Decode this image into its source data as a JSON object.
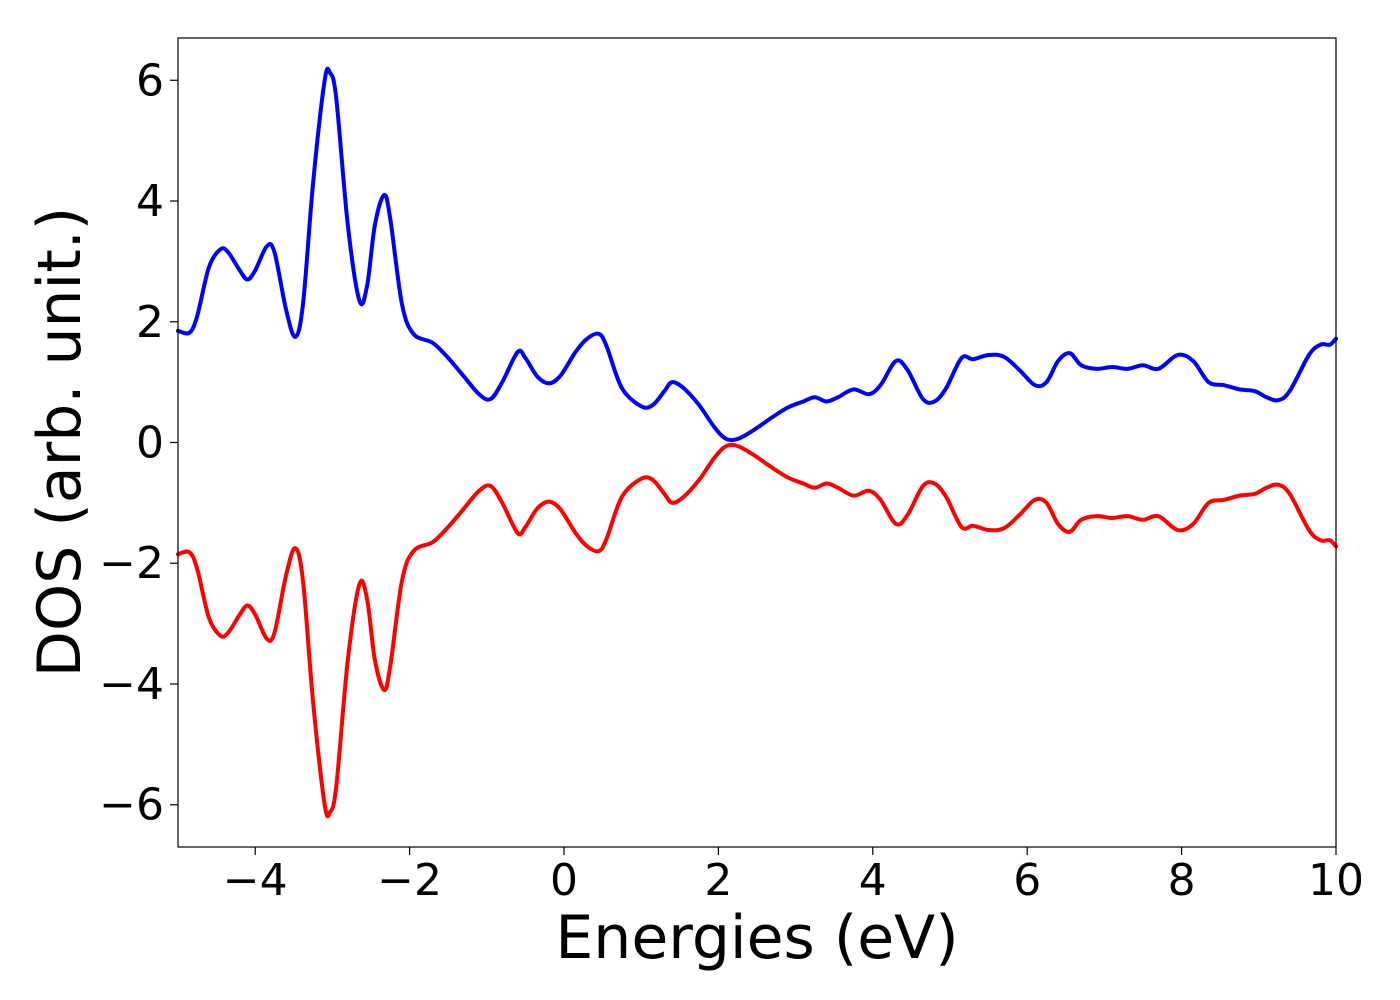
{
  "chart_data": {
    "type": "line",
    "xlabel": "Energies (eV)",
    "ylabel": "DOS (arb. unit.)",
    "xlim": [
      -5,
      10
    ],
    "ylim": [
      -6.7,
      6.7
    ],
    "grid": false,
    "xticks": [
      {
        "value": -4,
        "label": "−4"
      },
      {
        "value": -2,
        "label": "−2"
      },
      {
        "value": 0,
        "label": "0"
      },
      {
        "value": 2,
        "label": "2"
      },
      {
        "value": 4,
        "label": "4"
      },
      {
        "value": 6,
        "label": "6"
      },
      {
        "value": 8,
        "label": "8"
      },
      {
        "value": 10,
        "label": "10"
      }
    ],
    "yticks": [
      {
        "value": -6,
        "label": "−6"
      },
      {
        "value": -4,
        "label": "−4"
      },
      {
        "value": -2,
        "label": "−2"
      },
      {
        "value": 0,
        "label": "0"
      },
      {
        "value": 2,
        "label": "2"
      },
      {
        "value": 4,
        "label": "4"
      },
      {
        "value": 6,
        "label": "6"
      }
    ],
    "series": [
      {
        "color": "#0000ff",
        "points": [
          [
            -5.0,
            1.85
          ],
          [
            -4.85,
            1.82
          ],
          [
            -4.75,
            2.1
          ],
          [
            -4.6,
            2.9
          ],
          [
            -4.45,
            3.2
          ],
          [
            -4.35,
            3.15
          ],
          [
            -4.2,
            2.85
          ],
          [
            -4.1,
            2.7
          ],
          [
            -4.0,
            2.85
          ],
          [
            -3.85,
            3.25
          ],
          [
            -3.75,
            3.15
          ],
          [
            -3.6,
            2.2
          ],
          [
            -3.48,
            1.75
          ],
          [
            -3.38,
            2.3
          ],
          [
            -3.25,
            4.3
          ],
          [
            -3.1,
            6.0
          ],
          [
            -3.03,
            6.12
          ],
          [
            -2.95,
            5.7
          ],
          [
            -2.8,
            3.6
          ],
          [
            -2.65,
            2.35
          ],
          [
            -2.55,
            2.6
          ],
          [
            -2.45,
            3.6
          ],
          [
            -2.33,
            4.1
          ],
          [
            -2.25,
            3.7
          ],
          [
            -2.1,
            2.3
          ],
          [
            -1.95,
            1.8
          ],
          [
            -1.7,
            1.65
          ],
          [
            -1.5,
            1.4
          ],
          [
            -1.3,
            1.1
          ],
          [
            -1.1,
            0.8
          ],
          [
            -0.95,
            0.72
          ],
          [
            -0.8,
            1.0
          ],
          [
            -0.6,
            1.5
          ],
          [
            -0.5,
            1.4
          ],
          [
            -0.35,
            1.1
          ],
          [
            -0.2,
            0.98
          ],
          [
            -0.05,
            1.1
          ],
          [
            0.15,
            1.5
          ],
          [
            0.3,
            1.72
          ],
          [
            0.45,
            1.8
          ],
          [
            0.55,
            1.6
          ],
          [
            0.75,
            0.9
          ],
          [
            1.0,
            0.6
          ],
          [
            1.15,
            0.62
          ],
          [
            1.3,
            0.85
          ],
          [
            1.4,
            1.0
          ],
          [
            1.55,
            0.9
          ],
          [
            1.75,
            0.62
          ],
          [
            1.95,
            0.25
          ],
          [
            2.1,
            0.06
          ],
          [
            2.25,
            0.06
          ],
          [
            2.45,
            0.2
          ],
          [
            2.7,
            0.42
          ],
          [
            2.9,
            0.58
          ],
          [
            3.1,
            0.68
          ],
          [
            3.25,
            0.75
          ],
          [
            3.4,
            0.68
          ],
          [
            3.55,
            0.75
          ],
          [
            3.75,
            0.88
          ],
          [
            3.95,
            0.8
          ],
          [
            4.1,
            0.95
          ],
          [
            4.3,
            1.35
          ],
          [
            4.45,
            1.2
          ],
          [
            4.65,
            0.72
          ],
          [
            4.8,
            0.68
          ],
          [
            4.95,
            0.9
          ],
          [
            5.15,
            1.4
          ],
          [
            5.3,
            1.38
          ],
          [
            5.5,
            1.45
          ],
          [
            5.7,
            1.42
          ],
          [
            5.9,
            1.2
          ],
          [
            6.1,
            0.95
          ],
          [
            6.25,
            1.0
          ],
          [
            6.4,
            1.35
          ],
          [
            6.55,
            1.48
          ],
          [
            6.7,
            1.28
          ],
          [
            6.9,
            1.22
          ],
          [
            7.1,
            1.25
          ],
          [
            7.3,
            1.22
          ],
          [
            7.5,
            1.28
          ],
          [
            7.7,
            1.22
          ],
          [
            7.95,
            1.45
          ],
          [
            8.15,
            1.35
          ],
          [
            8.35,
            1.0
          ],
          [
            8.55,
            0.95
          ],
          [
            8.75,
            0.88
          ],
          [
            8.95,
            0.85
          ],
          [
            9.1,
            0.75
          ],
          [
            9.25,
            0.7
          ],
          [
            9.4,
            0.85
          ],
          [
            9.65,
            1.45
          ],
          [
            9.8,
            1.62
          ],
          [
            9.92,
            1.62
          ],
          [
            10.0,
            1.72
          ]
        ]
      },
      {
        "color": "#ff0000",
        "points": [
          [
            -5.0,
            -1.85
          ],
          [
            -4.85,
            -1.82
          ],
          [
            -4.75,
            -2.1
          ],
          [
            -4.6,
            -2.9
          ],
          [
            -4.45,
            -3.2
          ],
          [
            -4.35,
            -3.15
          ],
          [
            -4.2,
            -2.85
          ],
          [
            -4.1,
            -2.7
          ],
          [
            -4.0,
            -2.85
          ],
          [
            -3.85,
            -3.25
          ],
          [
            -3.75,
            -3.15
          ],
          [
            -3.6,
            -2.2
          ],
          [
            -3.48,
            -1.75
          ],
          [
            -3.38,
            -2.3
          ],
          [
            -3.25,
            -4.3
          ],
          [
            -3.1,
            -6.0
          ],
          [
            -3.03,
            -6.12
          ],
          [
            -2.95,
            -5.7
          ],
          [
            -2.8,
            -3.6
          ],
          [
            -2.65,
            -2.35
          ],
          [
            -2.55,
            -2.6
          ],
          [
            -2.45,
            -3.6
          ],
          [
            -2.33,
            -4.1
          ],
          [
            -2.25,
            -3.7
          ],
          [
            -2.1,
            -2.3
          ],
          [
            -1.95,
            -1.8
          ],
          [
            -1.7,
            -1.65
          ],
          [
            -1.5,
            -1.4
          ],
          [
            -1.3,
            -1.1
          ],
          [
            -1.1,
            -0.8
          ],
          [
            -0.95,
            -0.72
          ],
          [
            -0.8,
            -1.0
          ],
          [
            -0.6,
            -1.5
          ],
          [
            -0.5,
            -1.4
          ],
          [
            -0.35,
            -1.1
          ],
          [
            -0.2,
            -0.98
          ],
          [
            -0.05,
            -1.1
          ],
          [
            0.15,
            -1.5
          ],
          [
            0.3,
            -1.72
          ],
          [
            0.45,
            -1.8
          ],
          [
            0.55,
            -1.6
          ],
          [
            0.75,
            -0.9
          ],
          [
            1.0,
            -0.6
          ],
          [
            1.15,
            -0.62
          ],
          [
            1.3,
            -0.85
          ],
          [
            1.4,
            -1.0
          ],
          [
            1.55,
            -0.9
          ],
          [
            1.75,
            -0.62
          ],
          [
            1.95,
            -0.25
          ],
          [
            2.1,
            -0.06
          ],
          [
            2.25,
            -0.06
          ],
          [
            2.45,
            -0.2
          ],
          [
            2.7,
            -0.42
          ],
          [
            2.9,
            -0.58
          ],
          [
            3.1,
            -0.68
          ],
          [
            3.25,
            -0.75
          ],
          [
            3.4,
            -0.68
          ],
          [
            3.55,
            -0.75
          ],
          [
            3.75,
            -0.88
          ],
          [
            3.95,
            -0.8
          ],
          [
            4.1,
            -0.95
          ],
          [
            4.3,
            -1.35
          ],
          [
            4.45,
            -1.2
          ],
          [
            4.65,
            -0.72
          ],
          [
            4.8,
            -0.68
          ],
          [
            4.95,
            -0.9
          ],
          [
            5.15,
            -1.4
          ],
          [
            5.3,
            -1.38
          ],
          [
            5.5,
            -1.45
          ],
          [
            5.7,
            -1.42
          ],
          [
            5.9,
            -1.2
          ],
          [
            6.1,
            -0.95
          ],
          [
            6.25,
            -1.0
          ],
          [
            6.4,
            -1.35
          ],
          [
            6.55,
            -1.48
          ],
          [
            6.7,
            -1.28
          ],
          [
            6.9,
            -1.22
          ],
          [
            7.1,
            -1.25
          ],
          [
            7.3,
            -1.22
          ],
          [
            7.5,
            -1.28
          ],
          [
            7.7,
            -1.22
          ],
          [
            7.95,
            -1.45
          ],
          [
            8.15,
            -1.35
          ],
          [
            8.35,
            -1.0
          ],
          [
            8.55,
            -0.95
          ],
          [
            8.75,
            -0.88
          ],
          [
            8.95,
            -0.85
          ],
          [
            9.1,
            -0.75
          ],
          [
            9.25,
            -0.7
          ],
          [
            9.4,
            -0.85
          ],
          [
            9.65,
            -1.45
          ],
          [
            9.8,
            -1.62
          ],
          [
            9.92,
            -1.62
          ],
          [
            10.0,
            -1.72
          ]
        ]
      }
    ]
  }
}
